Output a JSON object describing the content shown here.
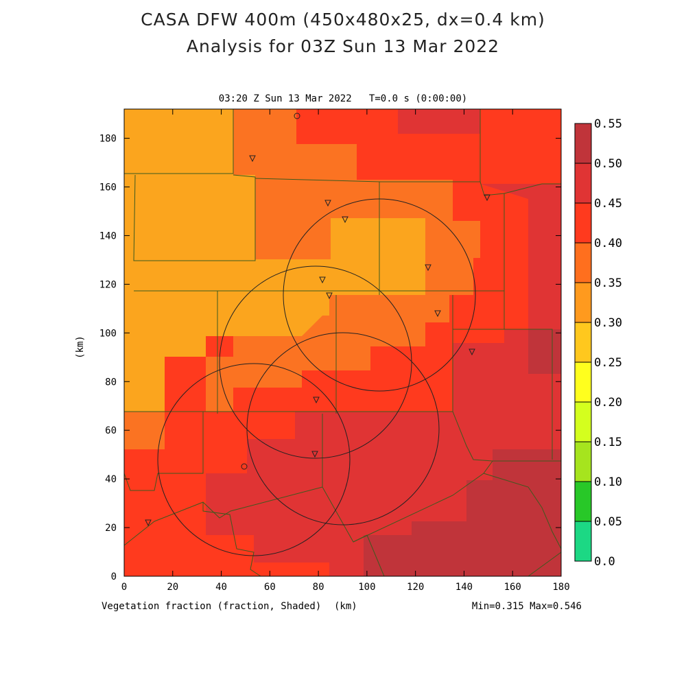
{
  "header": {
    "title_line1": "CASA DFW 400m (450x480x25, dx=0.4 km)",
    "title_line2": "Analysis for 03Z Sun 13 Mar 2022"
  },
  "plot": {
    "subtitle": "03:20 Z Sun 13 Mar 2022   T=0.0 s (0:00:00)",
    "variable_label": "Vegetation fraction (fraction, Shaded)",
    "x_unit": "(km)",
    "y_unit": "(km)",
    "minmax": "Min=0.315 Max=0.546",
    "x_ticks": [
      "0",
      "20",
      "40",
      "60",
      "80",
      "100",
      "120",
      "140",
      "160",
      "180"
    ],
    "y_ticks": [
      "0",
      "20",
      "40",
      "60",
      "80",
      "100",
      "120",
      "140",
      "160",
      "180"
    ]
  },
  "colorbar": {
    "labels": [
      "0.55",
      "0.50",
      "0.45",
      "0.40",
      "0.35",
      "0.30",
      "0.25",
      "0.20",
      "0.15",
      "0.10",
      "0.05",
      "0.0"
    ],
    "colors": [
      "#c0343a",
      "#e03434",
      "#ff3a1e",
      "#ff6f1e",
      "#ff9a1e",
      "#ffc81e",
      "#ffff1e",
      "#d4ff1e",
      "#a6e41e",
      "#28c828",
      "#1cd884"
    ],
    "sample_bands": [
      "#c0343a",
      "#e03434",
      "#ff3a1e",
      "#fb7322",
      "#fba51e"
    ]
  },
  "legend_colors": {
    "county_line": "#3c5a1e",
    "circle": "#222222"
  }
}
